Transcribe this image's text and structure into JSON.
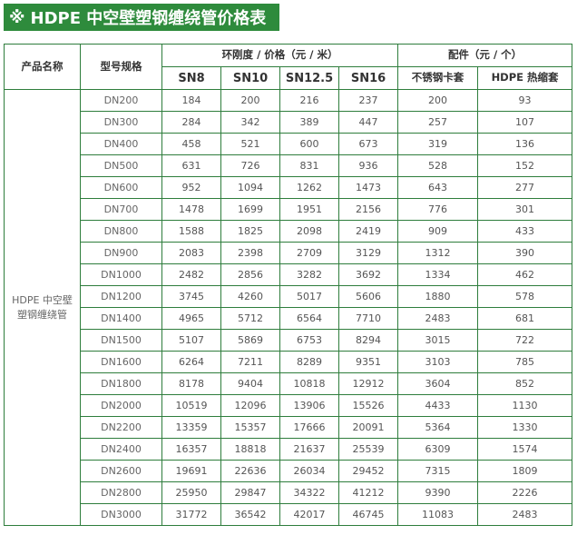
{
  "title": {
    "mark": "※",
    "text": "HDPE 中空壁塑钢缠绕管价格表"
  },
  "table": {
    "header": {
      "product_name": "产品名称",
      "model_spec": "型号规格",
      "stiffness_group": "环刚度 / 价格（元 / 米）",
      "accessory_group": "配件（元 / 个）",
      "sn": [
        "SN8",
        "SN10",
        "SN12.5",
        "SN16"
      ],
      "accessories": [
        "不锈钢卡套",
        "HDPE 热缩套"
      ]
    },
    "product": "HDPE 中空壁塑钢缠绕管",
    "rows": [
      {
        "spec": "DN200",
        "sn8": "184",
        "sn10": "200",
        "sn125": "216",
        "sn16": "237",
        "clamp": "200",
        "sleeve": "93"
      },
      {
        "spec": "DN300",
        "sn8": "284",
        "sn10": "342",
        "sn125": "389",
        "sn16": "447",
        "clamp": "257",
        "sleeve": "107"
      },
      {
        "spec": "DN400",
        "sn8": "458",
        "sn10": "521",
        "sn125": "600",
        "sn16": "673",
        "clamp": "319",
        "sleeve": "136"
      },
      {
        "spec": "DN500",
        "sn8": "631",
        "sn10": "726",
        "sn125": "831",
        "sn16": "936",
        "clamp": "528",
        "sleeve": "152"
      },
      {
        "spec": "DN600",
        "sn8": "952",
        "sn10": "1094",
        "sn125": "1262",
        "sn16": "1473",
        "clamp": "643",
        "sleeve": "277"
      },
      {
        "spec": "DN700",
        "sn8": "1478",
        "sn10": "1699",
        "sn125": "1951",
        "sn16": "2156",
        "clamp": "776",
        "sleeve": "301"
      },
      {
        "spec": "DN800",
        "sn8": "1588",
        "sn10": "1825",
        "sn125": "2098",
        "sn16": "2419",
        "clamp": "909",
        "sleeve": "433"
      },
      {
        "spec": "DN900",
        "sn8": "2083",
        "sn10": "2398",
        "sn125": "2709",
        "sn16": "3129",
        "clamp": "1312",
        "sleeve": "390"
      },
      {
        "spec": "DN1000",
        "sn8": "2482",
        "sn10": "2856",
        "sn125": "3282",
        "sn16": "3692",
        "clamp": "1334",
        "sleeve": "462"
      },
      {
        "spec": "DN1200",
        "sn8": "3745",
        "sn10": "4260",
        "sn125": "5017",
        "sn16": "5606",
        "clamp": "1880",
        "sleeve": "578"
      },
      {
        "spec": "DN1400",
        "sn8": "4965",
        "sn10": "5712",
        "sn125": "6564",
        "sn16": "7710",
        "clamp": "2483",
        "sleeve": "681"
      },
      {
        "spec": "DN1500",
        "sn8": "5107",
        "sn10": "5869",
        "sn125": "6753",
        "sn16": "8294",
        "clamp": "3015",
        "sleeve": "722"
      },
      {
        "spec": "DN1600",
        "sn8": "6264",
        "sn10": "7211",
        "sn125": "8289",
        "sn16": "9351",
        "clamp": "3103",
        "sleeve": "785"
      },
      {
        "spec": "DN1800",
        "sn8": "8178",
        "sn10": "9404",
        "sn125": "10818",
        "sn16": "12912",
        "clamp": "3604",
        "sleeve": "852"
      },
      {
        "spec": "DN2000",
        "sn8": "10519",
        "sn10": "12096",
        "sn125": "13906",
        "sn16": "15526",
        "clamp": "4433",
        "sleeve": "1130"
      },
      {
        "spec": "DN2200",
        "sn8": "13359",
        "sn10": "15357",
        "sn125": "17666",
        "sn16": "20091",
        "clamp": "5364",
        "sleeve": "1330"
      },
      {
        "spec": "DN2400",
        "sn8": "16357",
        "sn10": "18818",
        "sn125": "21637",
        "sn16": "25539",
        "clamp": "6309",
        "sleeve": "1574"
      },
      {
        "spec": "DN2600",
        "sn8": "19691",
        "sn10": "22636",
        "sn125": "26034",
        "sn16": "29452",
        "clamp": "7315",
        "sleeve": "1809"
      },
      {
        "spec": "DN2800",
        "sn8": "25950",
        "sn10": "29847",
        "sn125": "34322",
        "sn16": "41212",
        "clamp": "9390",
        "sleeve": "2226"
      },
      {
        "spec": "DN3000",
        "sn8": "31772",
        "sn10": "36542",
        "sn125": "42017",
        "sn16": "46745",
        "clamp": "11083",
        "sleeve": "2483"
      }
    ]
  },
  "colors": {
    "accent": "#2e8b3c",
    "border": "#2e7d3c",
    "text": "#555555"
  }
}
